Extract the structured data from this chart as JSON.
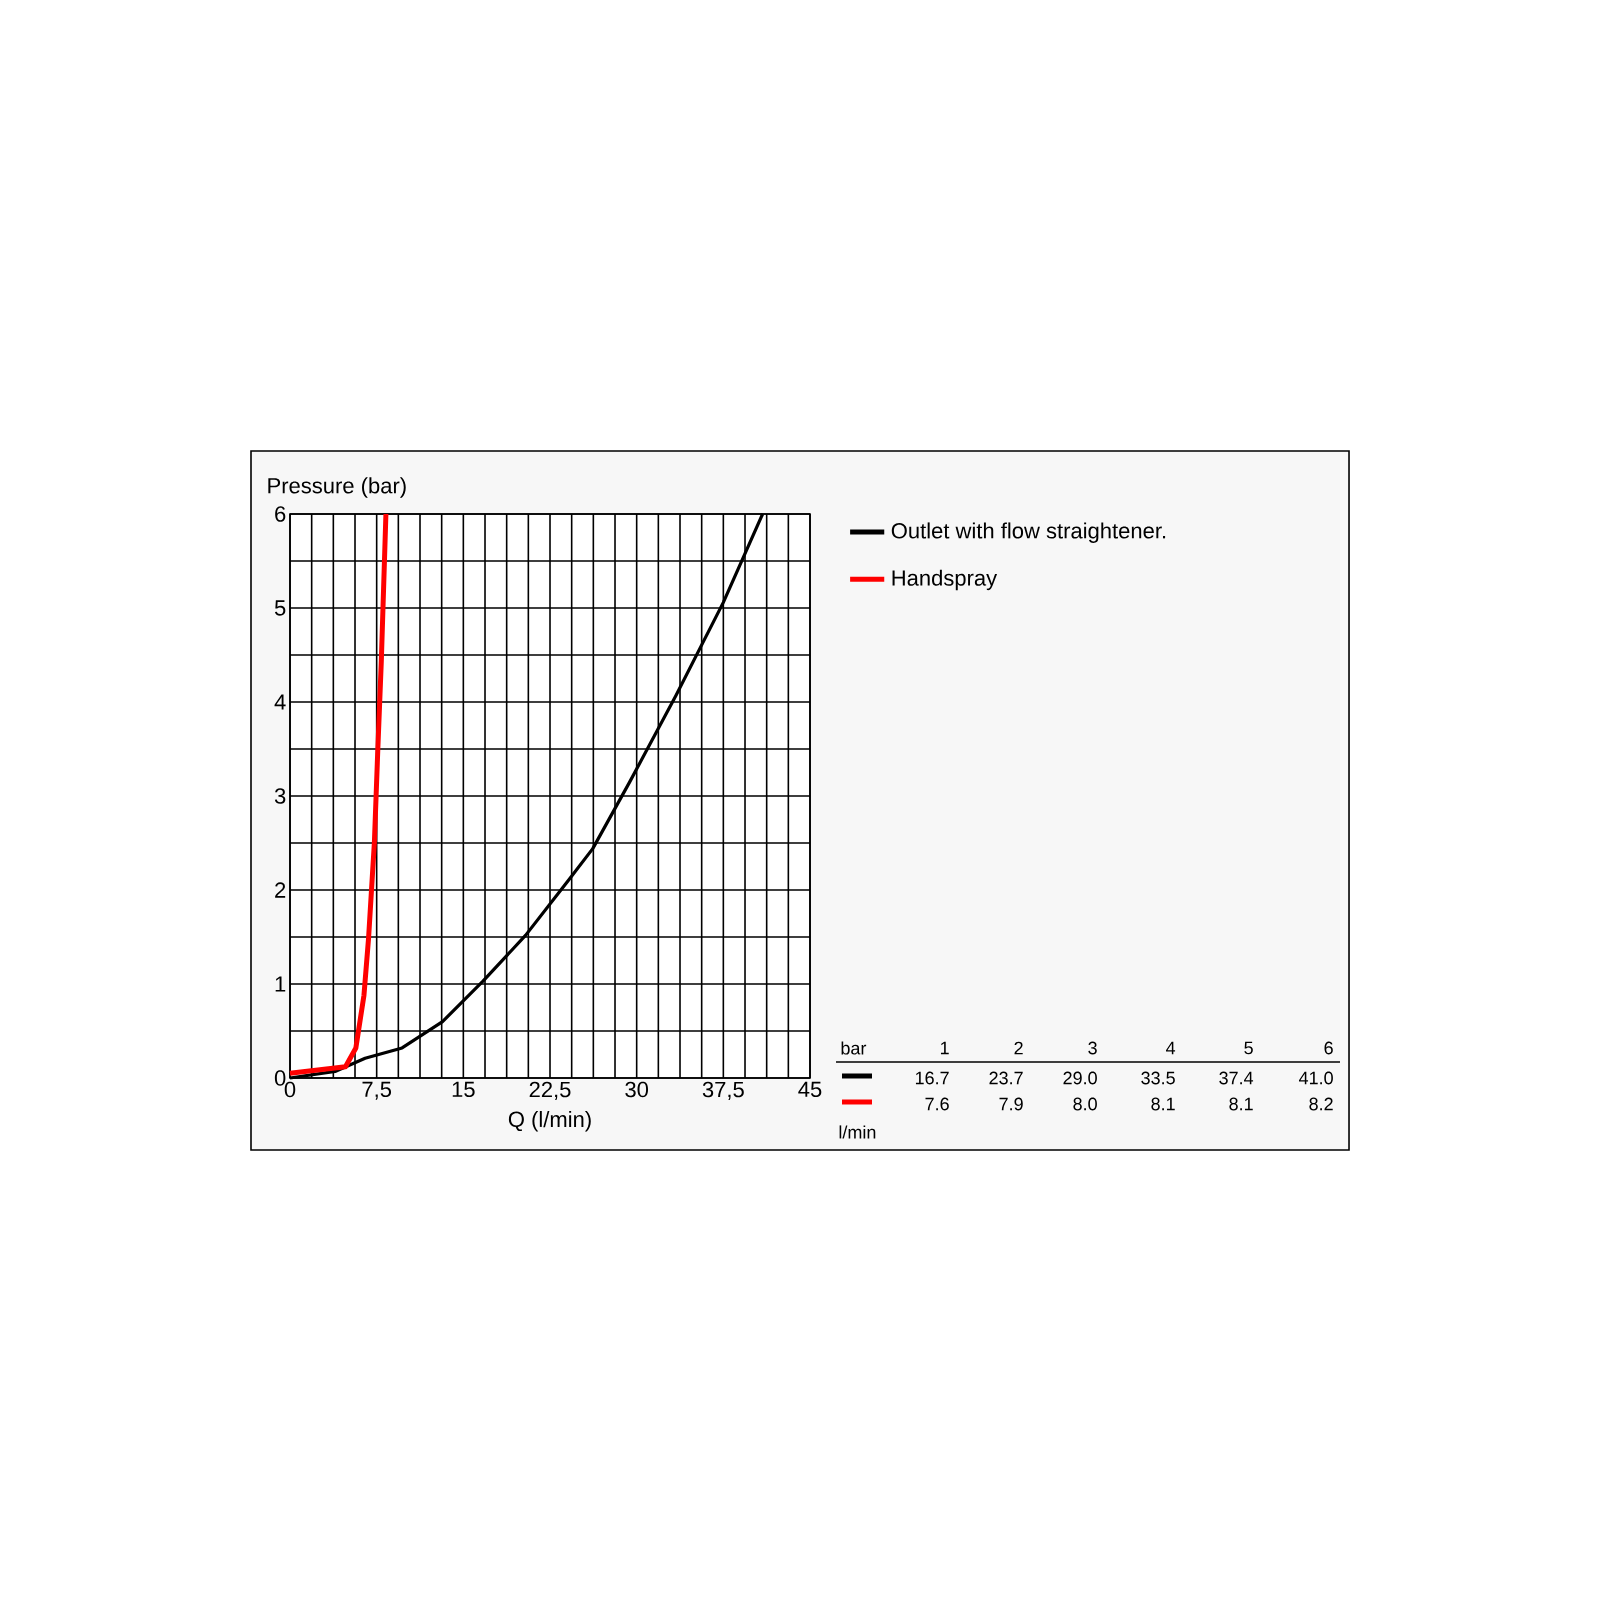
{
  "chart_data": {
    "type": "line",
    "xlabel": "Q (l/min)",
    "ylabel": "Pressure (bar)",
    "xlim": [
      0,
      45
    ],
    "ylim": [
      0,
      6
    ],
    "xticks": [
      0,
      {
        "value": 7.5,
        "label": "7,5"
      },
      15,
      {
        "value": 22.5,
        "label": "22,5"
      },
      30,
      {
        "value": 37.5,
        "label": "37,5"
      },
      45
    ],
    "yticks": [
      0,
      1,
      2,
      3,
      4,
      5,
      6
    ],
    "grid": true,
    "legend": "right",
    "marker": "none",
    "line_style": "solid",
    "series": [
      {
        "name": "Outlet with flow straightener.",
        "color": "#000000",
        "x": [
          0,
          3.9,
          6.5,
          9.7,
          13.2,
          16.7,
          20.4,
          24.2,
          26.2,
          29.4,
          33.4,
          37.5,
          40.9
        ],
        "values": [
          0,
          0.07,
          0.21,
          0.32,
          0.6,
          1.03,
          1.52,
          2.12,
          2.44,
          3.15,
          4.07,
          5.06,
          6
        ]
      },
      {
        "name": "Handspray",
        "color": "#ff0000",
        "x": [
          0,
          4.8,
          5.7,
          6.4,
          6.8,
          7.3,
          7.6,
          7.9,
          8.3
        ],
        "values": [
          0.05,
          0.12,
          0.32,
          0.88,
          1.49,
          2.5,
          3.5,
          4.43,
          6
        ]
      }
    ],
    "annotations": [
      "bar",
      "1",
      "2",
      "3",
      "4",
      "5",
      "6",
      "16.7",
      "23.7",
      "29.0",
      "33.5",
      "37.4",
      "41.0",
      "7.6",
      "7.9",
      "8.0",
      "8.1",
      "8.1",
      "8.2",
      "l/min"
    ]
  }
}
